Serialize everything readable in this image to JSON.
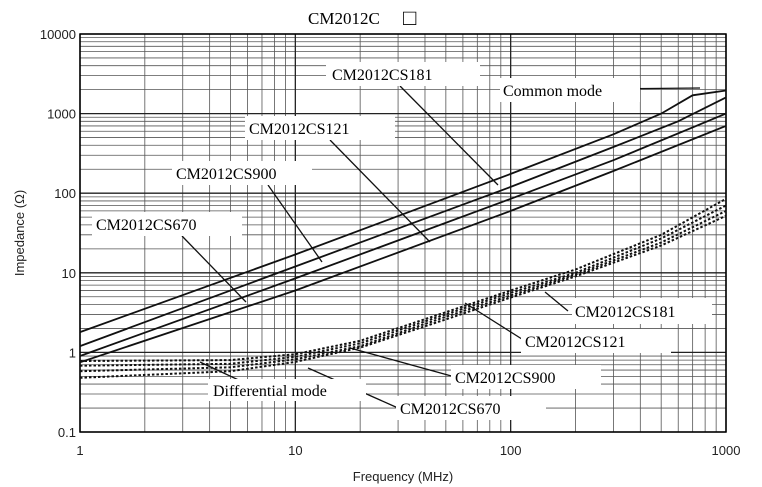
{
  "chart_data": {
    "type": "line",
    "title": "CM2012C",
    "title_symbol": "□",
    "xlabel": "Frequency (MHz)",
    "ylabel": "Impedance (Ω)",
    "x_scale": "log",
    "y_scale": "log",
    "xlim": [
      1,
      1000
    ],
    "ylim": [
      0.1,
      10000
    ],
    "grid": true,
    "x_ticks": [
      "1",
      "10",
      "100",
      "1000"
    ],
    "y_ticks": [
      "0.1",
      "1",
      "10",
      "100",
      "1000",
      "10000"
    ],
    "annotations": {
      "common_mode": "Common mode",
      "differential_mode": "Differential mode"
    },
    "series": [
      {
        "name": "CM2012CS181",
        "mode": "common",
        "style": "solid",
        "x": [
          1,
          10,
          100,
          300,
          500,
          700,
          1000
        ],
        "y": [
          1.8,
          17,
          175,
          550,
          1000,
          1700,
          1950
        ]
      },
      {
        "name": "CM2012CS121",
        "mode": "common",
        "style": "solid",
        "x": [
          1,
          10,
          100,
          300,
          600,
          1000
        ],
        "y": [
          1.2,
          12,
          120,
          380,
          800,
          1600
        ]
      },
      {
        "name": "CM2012CS900",
        "mode": "common",
        "style": "solid",
        "x": [
          1,
          10,
          100,
          300,
          1000
        ],
        "y": [
          0.9,
          8.5,
          85,
          260,
          1000
        ]
      },
      {
        "name": "CM2012CS670",
        "mode": "common",
        "style": "solid",
        "x": [
          1,
          10,
          100,
          300,
          1000
        ],
        "y": [
          0.75,
          6,
          60,
          190,
          700
        ]
      },
      {
        "name": "CM2012CS181",
        "mode": "differential",
        "style": "dotted",
        "x": [
          1,
          5,
          10,
          20,
          50,
          100,
          200,
          500,
          1000
        ],
        "y": [
          0.78,
          0.8,
          0.95,
          1.4,
          3.2,
          6,
          11,
          30,
          85
        ]
      },
      {
        "name": "CM2012CS121",
        "mode": "differential",
        "style": "dotted",
        "x": [
          1,
          5,
          10,
          20,
          50,
          100,
          200,
          500,
          1000
        ],
        "y": [
          0.68,
          0.72,
          0.88,
          1.3,
          3.0,
          5.6,
          10,
          27,
          70
        ]
      },
      {
        "name": "CM2012CS900",
        "mode": "differential",
        "style": "dotted",
        "x": [
          1,
          5,
          10,
          20,
          50,
          100,
          200,
          500,
          1000
        ],
        "y": [
          0.58,
          0.65,
          0.82,
          1.2,
          2.8,
          5.2,
          9.5,
          24,
          60
        ]
      },
      {
        "name": "CM2012CS670",
        "mode": "differential",
        "style": "dotted",
        "x": [
          1,
          5,
          10,
          20,
          50,
          100,
          200,
          500,
          1000
        ],
        "y": [
          0.48,
          0.58,
          0.76,
          1.15,
          2.6,
          4.9,
          9,
          22,
          52
        ]
      }
    ]
  }
}
